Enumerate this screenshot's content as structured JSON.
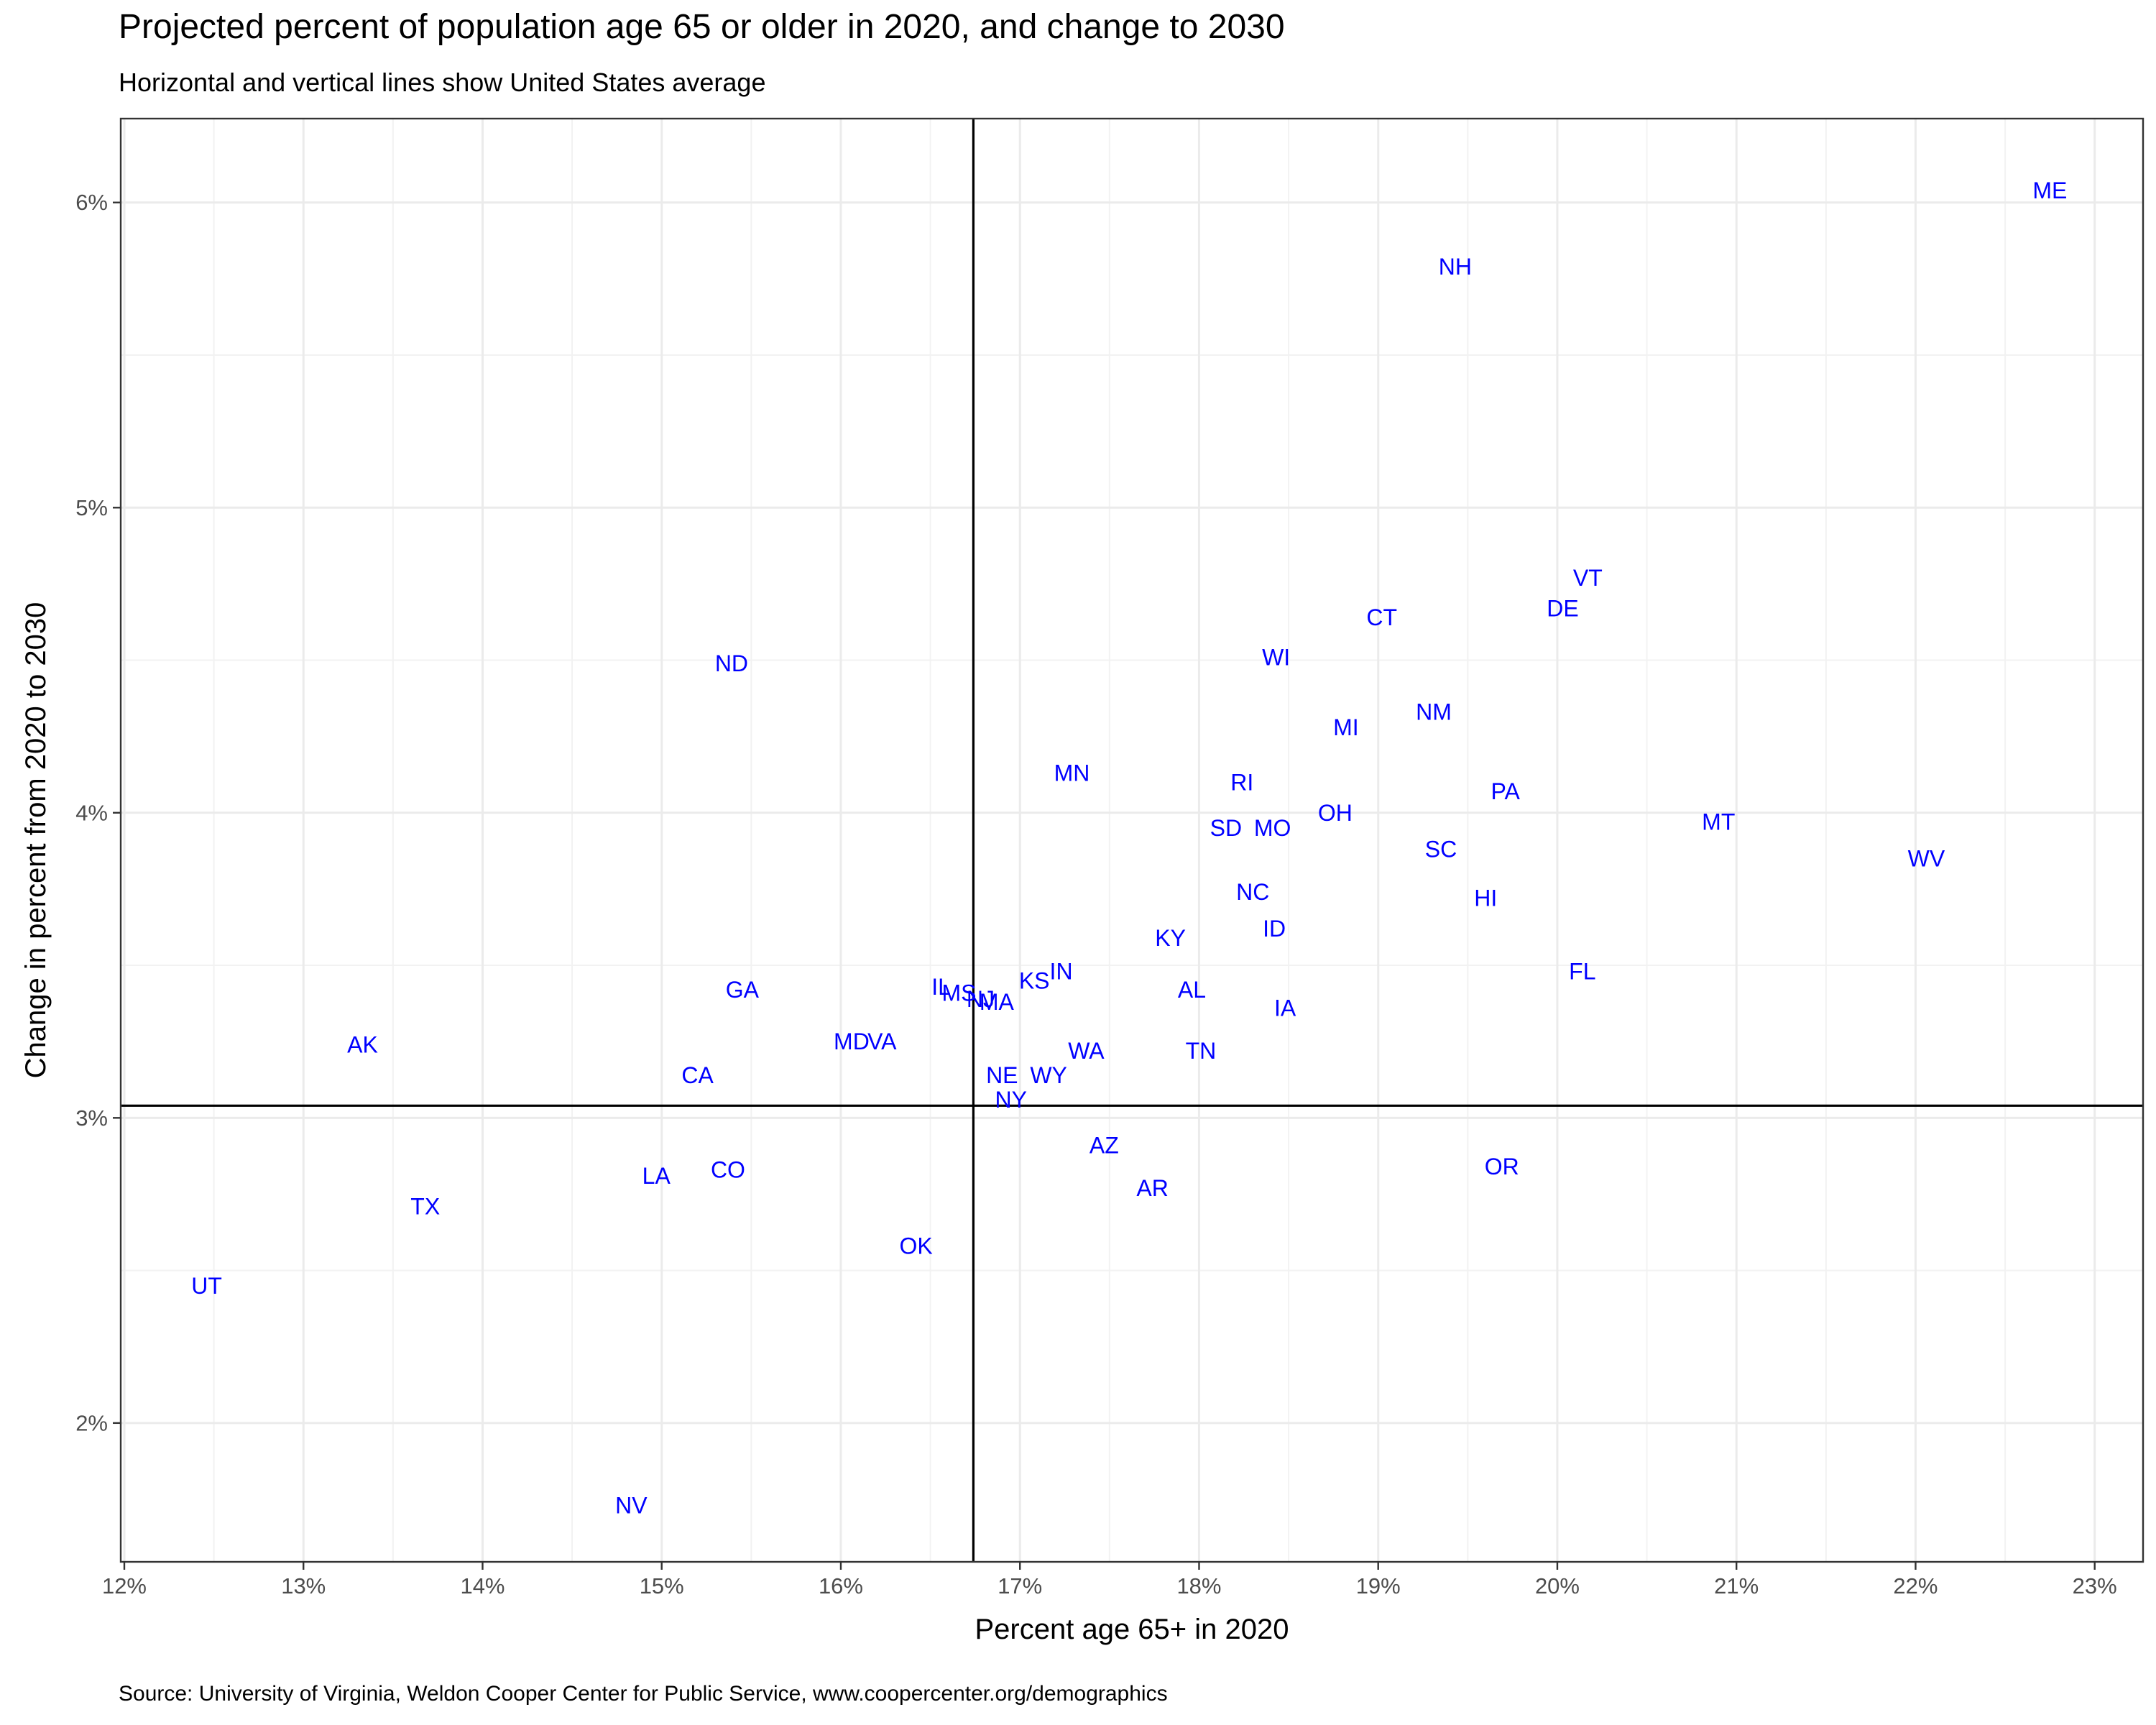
{
  "chart_data": {
    "type": "scatter",
    "title": "Projected percent of population age 65 or older in 2020, and change to 2030",
    "subtitle": "Horizontal and vertical lines show United States average",
    "xlabel": "Percent age 65+ in 2020",
    "ylabel": "Change in percent from 2020 to 2030",
    "caption": "Source: University of Virginia, Weldon Cooper Center for Public Service, www.coopercenter.org/demographics",
    "xlim": [
      11.98,
      23.27
    ],
    "ylim": [
      1.545,
      6.275
    ],
    "x_ticks": [
      12,
      13,
      14,
      15,
      16,
      17,
      18,
      19,
      20,
      21,
      22,
      23
    ],
    "x_tick_labels": [
      "12%",
      "13%",
      "14%",
      "15%",
      "16%",
      "17%",
      "18%",
      "19%",
      "20%",
      "21%",
      "22%",
      "23%"
    ],
    "y_ticks": [
      2,
      3,
      4,
      5,
      6
    ],
    "y_tick_labels": [
      "2%",
      "3%",
      "4%",
      "5%",
      "6%"
    ],
    "grid": true,
    "label_color": "#0000FF",
    "reference_lines": {
      "x": 16.74,
      "y": 3.04
    },
    "points": [
      {
        "label": "ME",
        "x": 22.75,
        "y": 6.04
      },
      {
        "label": "NH",
        "x": 19.43,
        "y": 5.79
      },
      {
        "label": "VT",
        "x": 20.17,
        "y": 4.77
      },
      {
        "label": "DE",
        "x": 20.03,
        "y": 4.67
      },
      {
        "label": "CT",
        "x": 19.02,
        "y": 4.64
      },
      {
        "label": "WI",
        "x": 18.43,
        "y": 4.51
      },
      {
        "label": "ND",
        "x": 15.39,
        "y": 4.49
      },
      {
        "label": "NM",
        "x": 19.31,
        "y": 4.33
      },
      {
        "label": "MI",
        "x": 18.82,
        "y": 4.28
      },
      {
        "label": "MN",
        "x": 17.29,
        "y": 4.13
      },
      {
        "label": "RI",
        "x": 18.24,
        "y": 4.1
      },
      {
        "label": "PA",
        "x": 19.71,
        "y": 4.07
      },
      {
        "label": "OH",
        "x": 18.76,
        "y": 4.0
      },
      {
        "label": "MT",
        "x": 20.9,
        "y": 3.97
      },
      {
        "label": "SD",
        "x": 18.15,
        "y": 3.95
      },
      {
        "label": "MO",
        "x": 18.41,
        "y": 3.95
      },
      {
        "label": "SC",
        "x": 19.35,
        "y": 3.88
      },
      {
        "label": "WV",
        "x": 22.06,
        "y": 3.85
      },
      {
        "label": "NC",
        "x": 18.3,
        "y": 3.74
      },
      {
        "label": "HI",
        "x": 19.6,
        "y": 3.72
      },
      {
        "label": "ID",
        "x": 18.42,
        "y": 3.62
      },
      {
        "label": "KY",
        "x": 17.84,
        "y": 3.59
      },
      {
        "label": "FL",
        "x": 20.14,
        "y": 3.48
      },
      {
        "label": "IN",
        "x": 17.23,
        "y": 3.48
      },
      {
        "label": "KS",
        "x": 17.08,
        "y": 3.45
      },
      {
        "label": "GA",
        "x": 15.45,
        "y": 3.42
      },
      {
        "label": "IL",
        "x": 16.56,
        "y": 3.43
      },
      {
        "label": "AL",
        "x": 17.96,
        "y": 3.42
      },
      {
        "label": "MS",
        "x": 16.66,
        "y": 3.41
      },
      {
        "label": "NJ",
        "x": 16.78,
        "y": 3.39
      },
      {
        "label": "MA",
        "x": 16.87,
        "y": 3.38
      },
      {
        "label": "IA",
        "x": 18.48,
        "y": 3.36
      },
      {
        "label": "AK",
        "x": 13.33,
        "y": 3.24
      },
      {
        "label": "MD",
        "x": 16.06,
        "y": 3.25
      },
      {
        "label": "VA",
        "x": 16.23,
        "y": 3.25
      },
      {
        "label": "WA",
        "x": 17.37,
        "y": 3.22
      },
      {
        "label": "TN",
        "x": 18.01,
        "y": 3.22
      },
      {
        "label": "NE",
        "x": 16.9,
        "y": 3.14
      },
      {
        "label": "WY",
        "x": 17.16,
        "y": 3.14
      },
      {
        "label": "CA",
        "x": 15.2,
        "y": 3.14
      },
      {
        "label": "NY",
        "x": 16.95,
        "y": 3.06
      },
      {
        "label": "AZ",
        "x": 17.47,
        "y": 2.91
      },
      {
        "label": "OR",
        "x": 19.69,
        "y": 2.84
      },
      {
        "label": "CO",
        "x": 15.37,
        "y": 2.83
      },
      {
        "label": "LA",
        "x": 14.97,
        "y": 2.81
      },
      {
        "label": "AR",
        "x": 17.74,
        "y": 2.77
      },
      {
        "label": "TX",
        "x": 13.68,
        "y": 2.71
      },
      {
        "label": "OK",
        "x": 16.42,
        "y": 2.58
      },
      {
        "label": "UT",
        "x": 12.46,
        "y": 2.45
      },
      {
        "label": "NV",
        "x": 14.83,
        "y": 1.73
      }
    ]
  }
}
